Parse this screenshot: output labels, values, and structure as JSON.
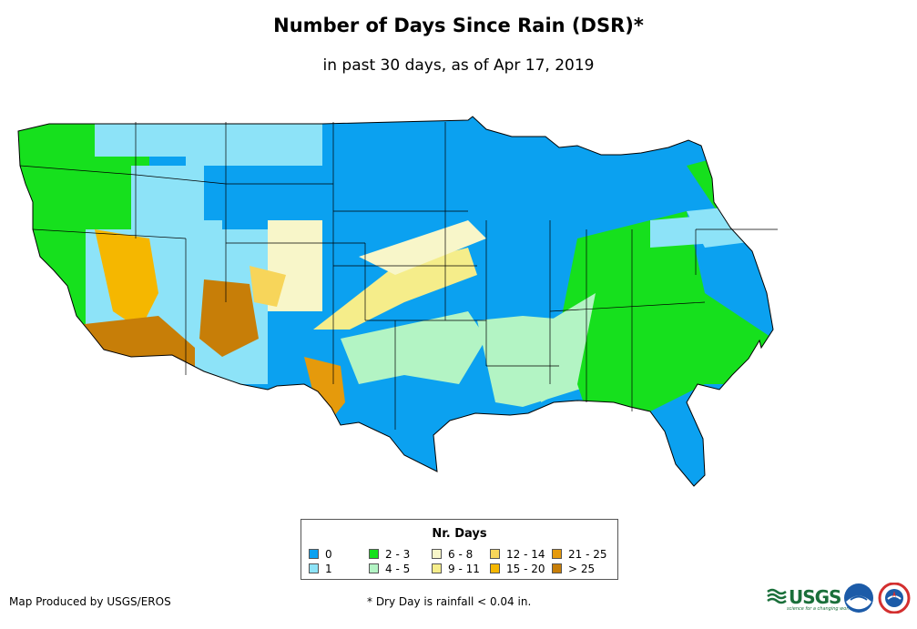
{
  "title": "Number of Days Since Rain (DSR)*",
  "subtitle": "in past 30 days, as of Apr 17, 2019",
  "legend": {
    "title": "Nr. Days",
    "items": [
      {
        "label": "0",
        "color": "#0ba1f0"
      },
      {
        "label": "1",
        "color": "#8de3f8"
      },
      {
        "label": "2 - 3",
        "color": "#16e01d"
      },
      {
        "label": "4 - 5",
        "color": "#b3f4c4"
      },
      {
        "label": "6 - 8",
        "color": "#f8f6c9"
      },
      {
        "label": "9 - 11",
        "color": "#f5ed8a"
      },
      {
        "label": "12 - 14",
        "color": "#f7d55a"
      },
      {
        "label": "15 - 20",
        "color": "#f5b700"
      },
      {
        "label": "21 - 25",
        "color": "#e59a0c"
      },
      {
        "label": "> 25",
        "color": "#c77e08"
      }
    ]
  },
  "footer": {
    "producer": "Map Produced by USGS/EROS",
    "note": "* Dry Day is rainfall < 0.04 in."
  },
  "logos": {
    "usgs": "USGS",
    "usgs_tagline": "science for a changing world"
  }
}
